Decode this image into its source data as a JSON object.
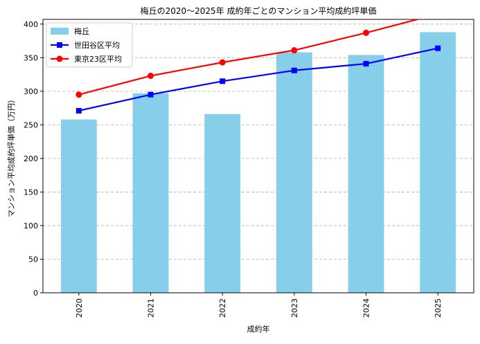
{
  "chart_data": {
    "type": "bar+line",
    "title": "梅丘の2020〜2025年 成約年ごとのマンション平均成約坪単価",
    "xlabel": "成約年",
    "ylabel": "マンション平均成約坪単価（万円）",
    "categories": [
      "2020",
      "2021",
      "2022",
      "2023",
      "2024",
      "2025"
    ],
    "ylim": [
      0,
      407
    ],
    "yticks": [
      0,
      50,
      100,
      150,
      200,
      250,
      300,
      350,
      400
    ],
    "grid": "y-dashed",
    "legend_position": "top-left",
    "series": [
      {
        "name": "梅丘",
        "kind": "bar",
        "color": "#87CEEB",
        "values": [
          258,
          297,
          266,
          358,
          354,
          388
        ]
      },
      {
        "name": "世田谷区平均",
        "kind": "line",
        "marker": "square",
        "color": "#0000FF",
        "values": [
          271,
          295,
          315,
          331,
          341,
          364
        ]
      },
      {
        "name": "東京23区平均",
        "kind": "line",
        "marker": "circle",
        "color": "#FF0000",
        "values": [
          295,
          323,
          343,
          361,
          387,
          415
        ]
      }
    ]
  }
}
